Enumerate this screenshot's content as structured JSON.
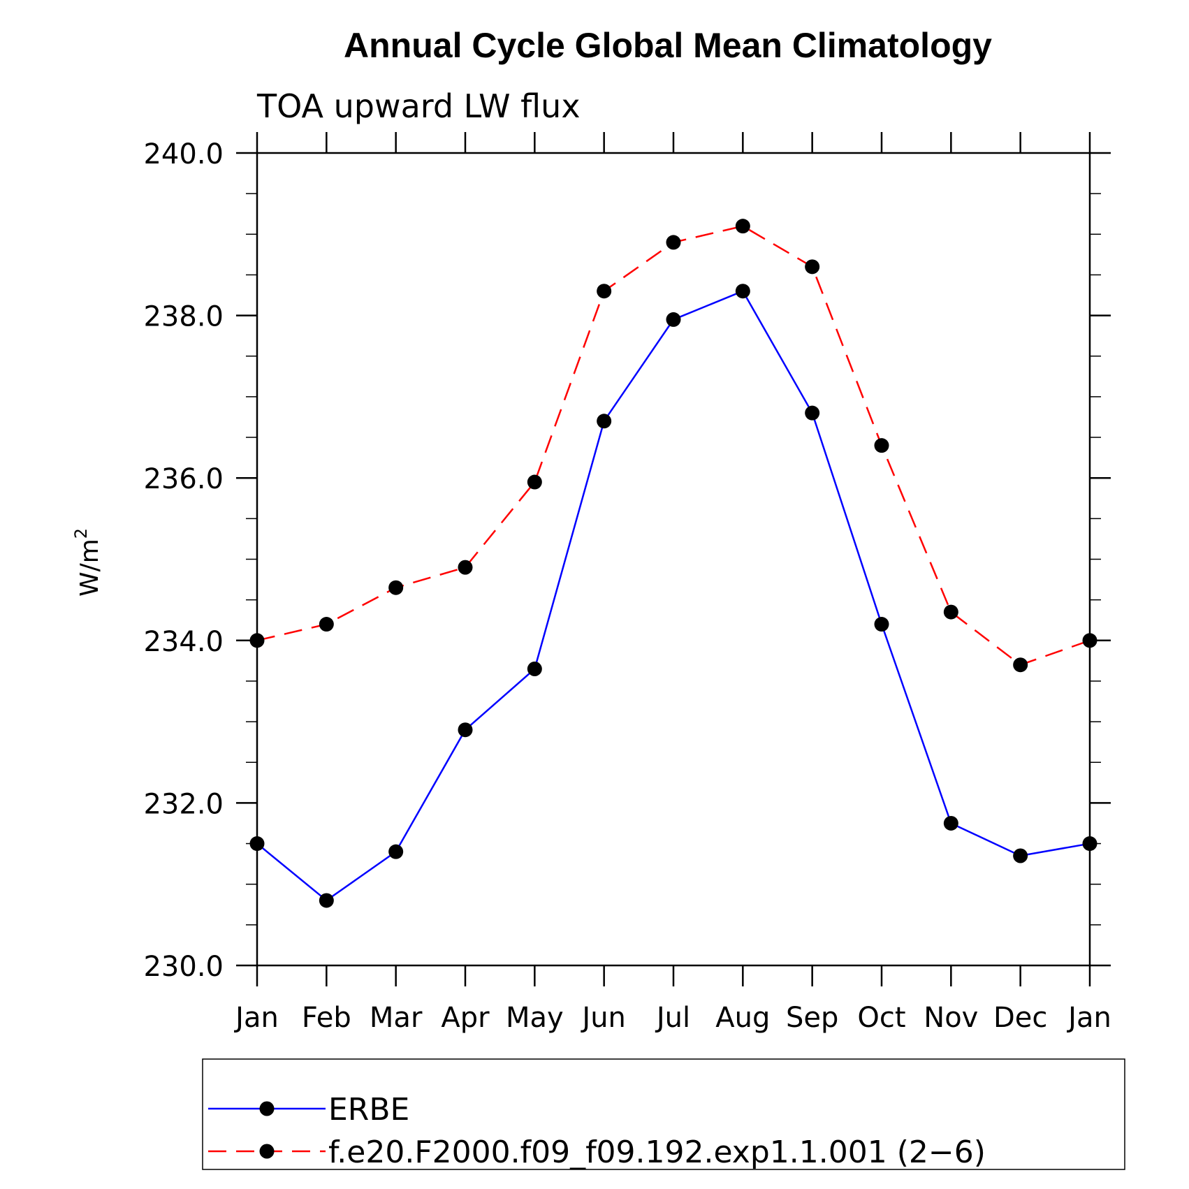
{
  "chart_data": {
    "type": "line",
    "title": "Annual Cycle Global Mean Climatology",
    "subtitle": "TOA upward LW flux",
    "ylabel_base": "W/m",
    "ylabel_sup": "2",
    "ylim": [
      230,
      240
    ],
    "yticks": [
      "230.0",
      "232.0",
      "234.0",
      "236.0",
      "238.0",
      "240.0"
    ],
    "categories": [
      "Jan",
      "Feb",
      "Mar",
      "Apr",
      "May",
      "Jun",
      "Jul",
      "Aug",
      "Sep",
      "Oct",
      "Nov",
      "Dec",
      "Jan"
    ],
    "series": [
      {
        "name": "ERBE",
        "color": "#0000ff",
        "dash": "solid",
        "values": [
          231.5,
          230.8,
          231.4,
          232.9,
          233.65,
          236.7,
          237.95,
          238.3,
          236.8,
          234.2,
          231.75,
          231.35,
          231.5
        ]
      },
      {
        "name": "f.e20.F2000.f09_f09.192.exp1.1.001 (2−6)",
        "color": "#ff0000",
        "dash": "dashed",
        "values": [
          234.0,
          234.2,
          234.65,
          234.9,
          235.95,
          238.3,
          238.9,
          239.1,
          238.6,
          236.4,
          234.35,
          233.7,
          234.0
        ]
      }
    ],
    "grid": false,
    "legend_position": "bottom"
  }
}
